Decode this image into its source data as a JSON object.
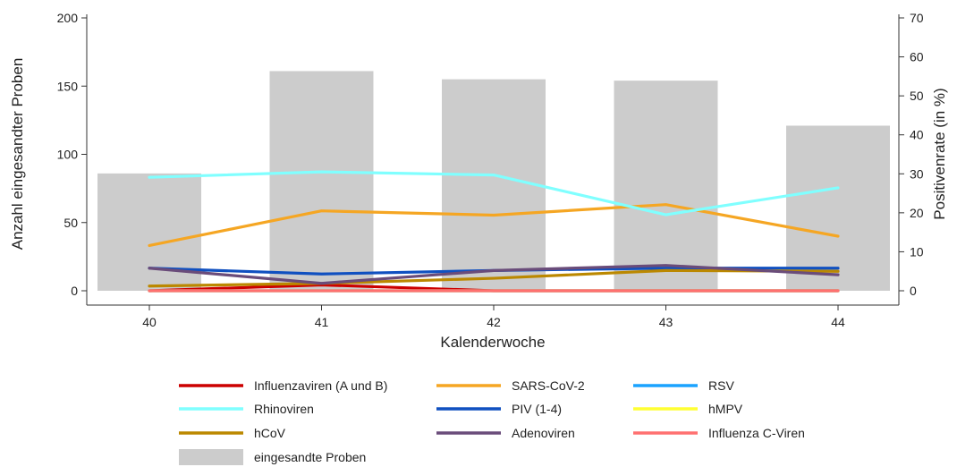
{
  "chart_data": {
    "type": "bar",
    "categories": [
      "40",
      "41",
      "42",
      "43",
      "44"
    ],
    "xlabel": "Kalenderwoche",
    "ylabel": "Anzahl eingesandter Proben",
    "y2label": "Positivenrate (in %)",
    "ylim": [
      0,
      200
    ],
    "y2lim": [
      0,
      70
    ],
    "yticks": [
      "0",
      "50",
      "100",
      "150",
      "200"
    ],
    "y2ticks": [
      "0",
      "10",
      "20",
      "30",
      "40",
      "50",
      "60",
      "70"
    ],
    "bars": {
      "name": "eingesandte Proben",
      "color": "#cccccc",
      "values": [
        86,
        161,
        155,
        154,
        121
      ]
    },
    "series": [
      {
        "name": "Influenzaviren (A und B)",
        "color": "#cc0000",
        "values": [
          0,
          1.5,
          0,
          0,
          0
        ]
      },
      {
        "name": "SARS-CoV-2",
        "color": "#f5a623",
        "values": [
          11.6,
          20.5,
          19.4,
          22.1,
          14.0
        ]
      },
      {
        "name": "RSV",
        "color": "#1aa3ff",
        "values": [
          0,
          0,
          0,
          0,
          0
        ]
      },
      {
        "name": "Rhinoviren",
        "color": "#80ffff",
        "values": [
          29.1,
          30.5,
          29.7,
          19.5,
          26.4
        ]
      },
      {
        "name": "PIV (1-4)",
        "color": "#1050c0",
        "values": [
          5.8,
          4.3,
          5.2,
          5.8,
          5.8
        ]
      },
      {
        "name": "hMPV",
        "color": "#ffff33",
        "values": [
          0,
          0,
          0,
          0,
          0
        ]
      },
      {
        "name": "hCoV",
        "color": "#bb8800",
        "values": [
          1.2,
          1.9,
          3.2,
          5.2,
          5.0
        ]
      },
      {
        "name": "Adenoviren",
        "color": "#6a4c7a",
        "values": [
          5.8,
          1.9,
          5.2,
          6.5,
          4.1
        ]
      },
      {
        "name": "Influenza C-Viren",
        "color": "#ff7070",
        "values": [
          0,
          0,
          0,
          0,
          0
        ]
      }
    ],
    "legend_position": "bottom"
  }
}
